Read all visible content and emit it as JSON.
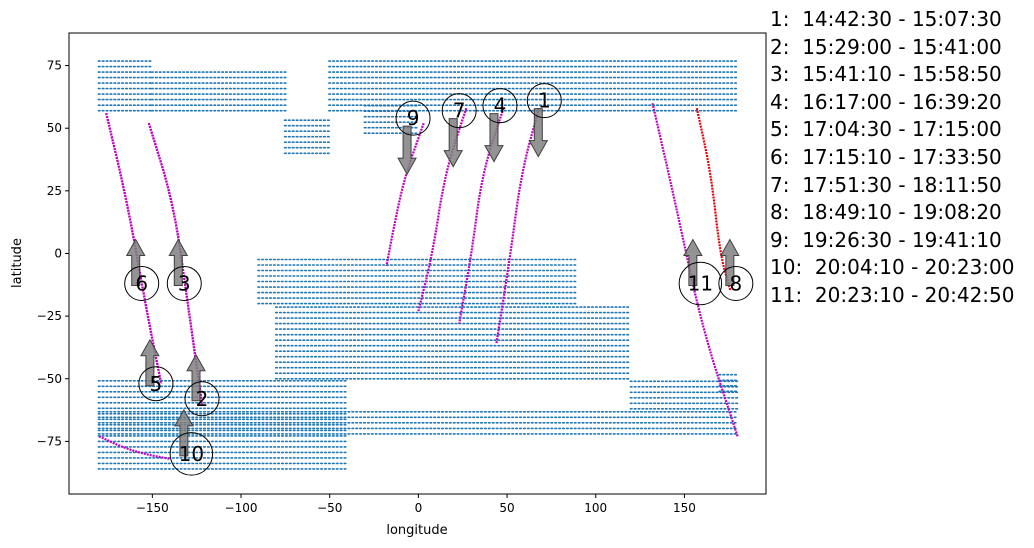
{
  "chart_data": {
    "type": "scatter",
    "xlabel": "longitude",
    "ylabel": "latitude",
    "xlim": [
      -197,
      196
    ],
    "ylim": [
      -96,
      88
    ],
    "xticks": [
      -150,
      -100,
      -50,
      0,
      50,
      100,
      150
    ],
    "yticks": [
      75,
      50,
      25,
      0,
      -25,
      -50,
      -75
    ],
    "colors": {
      "land": "#1f77b4",
      "track": "#bf00bf",
      "current_track": "#e8000b",
      "arrow": "#808080"
    },
    "land_regions": [
      {
        "lon": [
          -180,
          -150
        ],
        "lat": [
          57,
          77
        ]
      },
      {
        "lon": [
          -150,
          -75
        ],
        "lat": [
          57,
          73
        ]
      },
      {
        "lon": [
          -75,
          -50
        ],
        "lat": [
          40,
          55
        ]
      },
      {
        "lon": [
          -50,
          180
        ],
        "lat": [
          57,
          78
        ]
      },
      {
        "lon": [
          -30,
          0
        ],
        "lat": [
          48,
          60
        ]
      },
      {
        "lon": [
          -90,
          90
        ],
        "lat": [
          -20,
          -2
        ]
      },
      {
        "lon": [
          -80,
          120
        ],
        "lat": [
          -50,
          -20
        ]
      },
      {
        "lon": [
          -180,
          -40
        ],
        "lat": [
          -86,
          -50
        ]
      },
      {
        "lon": [
          -180,
          180
        ],
        "lat": [
          -72,
          -62
        ]
      },
      {
        "lon": [
          120,
          180
        ],
        "lat": [
          -62,
          -50
        ]
      },
      {
        "lon": [
          170,
          180
        ],
        "lat": [
          -55,
          -48
        ]
      }
    ],
    "tracks": [
      {
        "id": 1,
        "color": "track",
        "lon": [
          68,
          58,
          52,
          44
        ],
        "lat": [
          58,
          32,
          0,
          -36
        ]
      },
      {
        "id": 2,
        "color": "track",
        "lon": [
          -152,
          -138,
          -130,
          -122
        ],
        "lat": [
          52,
          20,
          -20,
          -60
        ]
      },
      {
        "id": 3,
        "color": "track",
        "lon": [
          -152,
          -138,
          -130,
          -122
        ],
        "lat": [
          52,
          20,
          -20,
          -60
        ]
      },
      {
        "id": 4,
        "color": "track",
        "lon": [
          48,
          36,
          30,
          23
        ],
        "lat": [
          58,
          32,
          0,
          -28
        ]
      },
      {
        "id": 5,
        "color": "track",
        "lon": [
          -176,
          -164,
          -154,
          -145
        ],
        "lat": [
          56,
          20,
          -20,
          -52
        ]
      },
      {
        "id": 6,
        "color": "track",
        "lon": [
          -176,
          -164,
          -154,
          -145
        ],
        "lat": [
          56,
          20,
          -20,
          -52
        ]
      },
      {
        "id": 7,
        "color": "track",
        "lon": [
          27,
          15,
          8,
          0
        ],
        "lat": [
          58,
          32,
          0,
          -23
        ]
      },
      {
        "id": 8,
        "color": "current_track",
        "lon": [
          157,
          165,
          170,
          176
        ],
        "lat": [
          58,
          32,
          0,
          -15
        ]
      },
      {
        "id": 9,
        "color": "track",
        "lon": [
          3,
          -8,
          -14,
          -18
        ],
        "lat": [
          52,
          30,
          10,
          -5
        ]
      },
      {
        "id": 10,
        "color": "track",
        "lon": [
          -180,
          -168,
          -155,
          -140
        ],
        "lat": [
          -73,
          -77,
          -80,
          -82
        ]
      },
      {
        "id": 11,
        "color": "track",
        "lon": [
          132,
          145,
          160,
          180
        ],
        "lat": [
          60,
          20,
          -30,
          -73
        ]
      }
    ],
    "markers": [
      {
        "label": "1",
        "lon": 71,
        "lat": 61,
        "r": 1.0,
        "arrow_dir": "down"
      },
      {
        "label": "2",
        "lon": -122,
        "lat": -58,
        "r": 1.0,
        "arrow_dir": "up"
      },
      {
        "label": "3",
        "lon": -132,
        "lat": -12,
        "r": 1.0,
        "arrow_dir": "up"
      },
      {
        "label": "4",
        "lon": 46,
        "lat": 59,
        "r": 1.0,
        "arrow_dir": "down"
      },
      {
        "label": "5",
        "lon": -148,
        "lat": -52,
        "r": 1.0,
        "arrow_dir": "up"
      },
      {
        "label": "6",
        "lon": -156,
        "lat": -12,
        "r": 1.0,
        "arrow_dir": "up"
      },
      {
        "label": "7",
        "lon": 23,
        "lat": 57,
        "r": 1.0,
        "arrow_dir": "down"
      },
      {
        "label": "8",
        "lon": 179,
        "lat": -12,
        "r": 1.0,
        "arrow_dir": "up"
      },
      {
        "label": "9",
        "lon": -3,
        "lat": 54,
        "r": 1.0,
        "arrow_dir": "down"
      },
      {
        "label": "10",
        "lon": -128,
        "lat": -80,
        "r": 1.25,
        "arrow_dir": "up"
      },
      {
        "label": "11",
        "lon": 159,
        "lat": -12,
        "r": 1.25,
        "arrow_dir": "up"
      }
    ],
    "legend_position": "right",
    "legend": [
      {
        "label": "1:",
        "range": "14:42:30 - 15:07:30"
      },
      {
        "label": "2:",
        "range": "15:29:00 - 15:41:00"
      },
      {
        "label": "3:",
        "range": "15:41:10 - 15:58:50"
      },
      {
        "label": "4:",
        "range": "16:17:00 - 16:39:20"
      },
      {
        "label": "5:",
        "range": "17:04:30 - 17:15:00"
      },
      {
        "label": "6:",
        "range": "17:15:10 - 17:33:50"
      },
      {
        "label": "7:",
        "range": "17:51:30 - 18:11:50"
      },
      {
        "label": "8:",
        "range": "18:49:10 - 19:08:20"
      },
      {
        "label": "9:",
        "range": "19:26:30 - 19:41:10"
      },
      {
        "label": "10:",
        "range": "20:04:10 - 20:23:00"
      },
      {
        "label": "11:",
        "range": "20:23:10 - 20:42:50"
      }
    ]
  }
}
